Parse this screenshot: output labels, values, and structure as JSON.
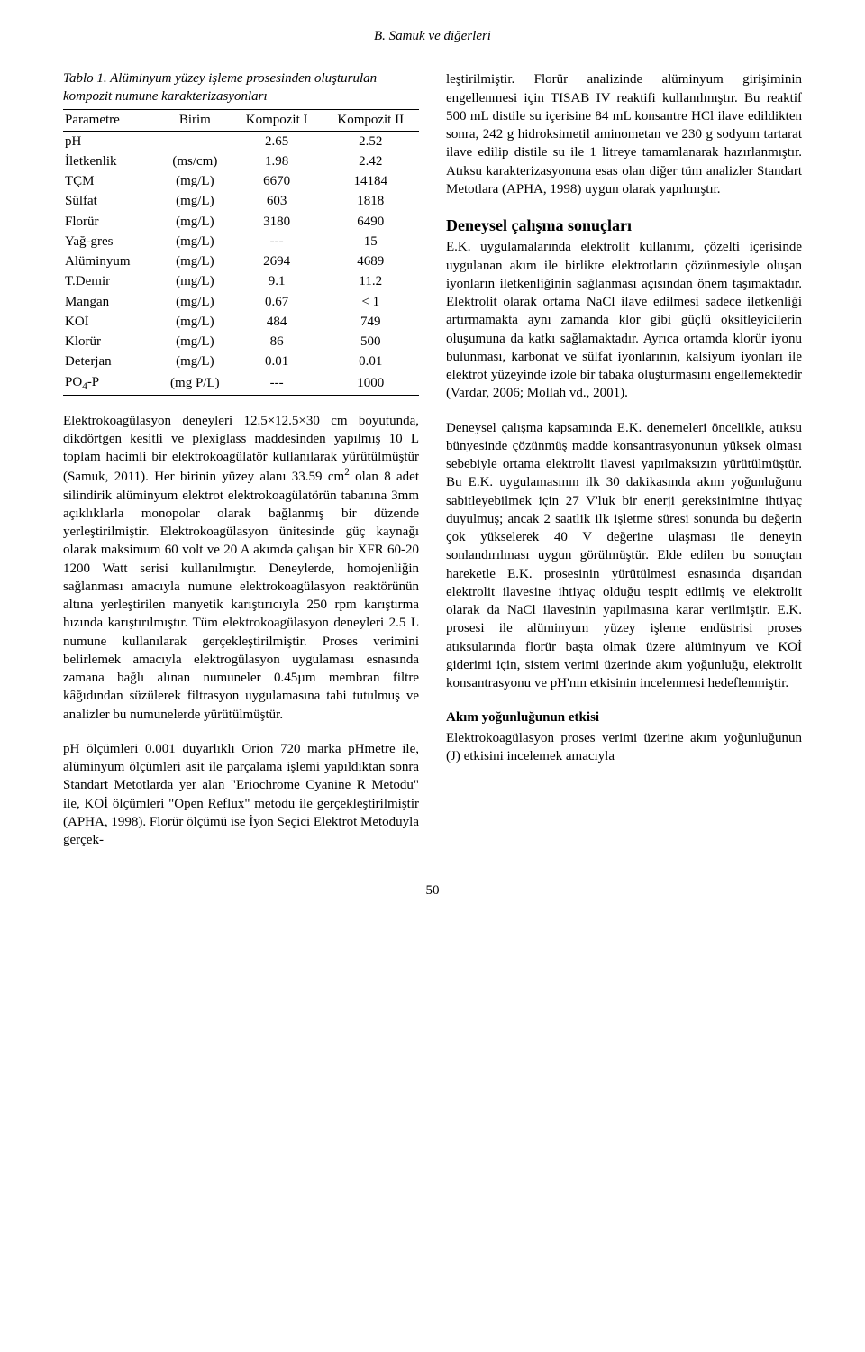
{
  "header": "B. Samuk ve diğerleri",
  "table": {
    "caption": "Tablo 1. Alüminyum yüzey işleme prosesinden oluşturulan kompozit numune karakterizasyonları",
    "columns": [
      "Parametre",
      "Birim",
      "Kompozit I",
      "Kompozit II"
    ],
    "rows": [
      [
        "pH",
        "",
        "2.65",
        "2.52"
      ],
      [
        "İletkenlik",
        "(ms/cm)",
        "1.98",
        "2.42"
      ],
      [
        "TÇM",
        "(mg/L)",
        "6670",
        "14184"
      ],
      [
        "Sülfat",
        "(mg/L)",
        "603",
        "1818"
      ],
      [
        "Florür",
        "(mg/L)",
        "3180",
        "6490"
      ],
      [
        "Yağ-gres",
        "(mg/L)",
        "---",
        "15"
      ],
      [
        "Alüminyum",
        "(mg/L)",
        "2694",
        "4689"
      ],
      [
        "T.Demir",
        "(mg/L)",
        "9.1",
        "11.2"
      ],
      [
        "Mangan",
        "(mg/L)",
        "0.67",
        "< 1"
      ],
      [
        "KOİ",
        "(mg/L)",
        "484",
        "749"
      ],
      [
        "Klorür",
        "(mg/L)",
        "86",
        "500"
      ],
      [
        "Deterjan",
        "(mg/L)",
        "0.01",
        "0.01"
      ],
      [
        "PO4-P",
        "(mg P/L)",
        "---",
        "1000"
      ]
    ]
  },
  "left": {
    "p1": "Elektrokoagülasyon deneyleri 12.5×12.5×30 cm boyutunda, dikdörtgen kesitli ve plexiglass maddesinden yapılmış 10 L toplam hacimli bir elektrokoagülatör kullanılarak yürütülmüştür (Samuk, 2011). Her birinin yüzey alanı 33.59 cm",
    "p1b": " olan 8 adet silindirik alüminyum elektrot elektrokoagülatörün tabanına 3mm açıklıklarla monopolar olarak bağlanmış bir düzende yerleştirilmiştir. Elektrokoagülasyon ünitesinde güç kaynağı olarak maksimum 60 volt ve 20 A akımda çalışan bir XFR 60-20 1200 Watt serisi kullanılmıştır. Deneylerde, homojenliğin sağlanması amacıyla numune elektrokoagülasyon reaktörünün altına yerleştirilen manyetik karıştırıcıyla 250 rpm karıştırma hızında karıştırılmıştır. Tüm elektrokoagülasyon deneyleri 2.5 L numune kullanılarak gerçekleştirilmiştir. Proses verimini belirlemek amacıyla elektrogülasyon uygulaması esnasında zamana bağlı alınan numuneler 0.45µm membran filtre kâğıdından süzülerek filtrasyon uygulamasına tabi tutulmuş ve analizler bu numunelerde yürütülmüştür.",
    "p2": "pH ölçümleri 0.001 duyarlıklı Orion 720 marka pHmetre ile, alüminyum ölçümleri asit ile parçalama işlemi yapıldıktan sonra Standart Metotlarda yer alan \"Eriochrome Cyanine R Metodu\" ile, KOİ ölçümleri \"Open Reflux\" metodu ile gerçekleştirilmiştir (APHA, 1998). Florür ölçümü ise İyon Seçici Elektrot Metoduyla gerçek-"
  },
  "right": {
    "p1": "leştirilmiştir. Florür analizinde alüminyum girişiminin engellenmesi için TISAB IV reaktifi kullanılmıştır. Bu reaktif 500 mL distile su içerisine 84 mL konsantre HCl ilave edildikten sonra, 242 g hidroksimetil aminometan ve 230 g sodyum tartarat ilave edilip distile su ile 1 litreye tamamlanarak hazırlanmıştır. Atıksu karakterizasyonuna esas olan diğer tüm analizler Standart Metotlara (APHA, 1998) uygun olarak yapılmıştır.",
    "section": "Deneysel çalışma sonuçları",
    "p2": "E.K. uygulamalarında elektrolit kullanımı, çözelti içerisinde uygulanan akım ile birlikte elektrotların çözünmesiyle oluşan iyonların iletkenliğinin sağlanması açısından önem taşımaktadır. Elektrolit olarak ortama NaCl ilave edilmesi sadece iletkenliği artırmamakta aynı zamanda klor gibi güçlü oksitleyicilerin oluşumuna da katkı sağlamaktadır. Ayrıca ortamda klorür iyonu bulunması, karbonat ve sülfat iyonlarının, kalsiyum iyonları ile elektrot yüzeyinde izole bir tabaka oluşturmasını engellemektedir (Vardar, 2006; Mollah vd., 2001).",
    "p3": "Deneysel çalışma kapsamında E.K. denemeleri öncelikle, atıksu bünyesinde çözünmüş madde konsantrasyonunun yüksek olması sebebiyle ortama elektrolit ilavesi yapılmaksızın yürütülmüştür. Bu E.K. uygulamasının ilk 30 dakikasında akım yoğunluğunu sabitleyebilmek için 27 V'luk bir enerji gereksinimine ihtiyaç duyulmuş; ancak 2 saatlik ilk işletme süresi sonunda bu değerin çok yükselerek 40 V değerine ulaşması ile deneyin sonlandırılması uygun görülmüştür. Elde edilen bu sonuçtan hareketle E.K. prosesinin yürütülmesi esnasında dışarıdan elektrolit ilavesine ihtiyaç olduğu tespit edilmiş ve elektrolit olarak da NaCl ilavesinin yapılmasına karar verilmiştir. E.K. prosesi ile alüminyum yüzey işleme endüstrisi proses atıksularında florür başta olmak üzere alüminyum ve KOİ giderimi için, sistem verimi üzerinde akım yoğunluğu, elektrolit konsantrasyonu ve pH'nın etkisinin incelenmesi hedeflenmiştir.",
    "subhead": "Akım yoğunluğunun etkisi",
    "p4": "Elektrokoagülasyon proses verimi üzerine akım yoğunluğunun (J) etkisini incelemek amacıyla"
  },
  "pagenum": "50"
}
